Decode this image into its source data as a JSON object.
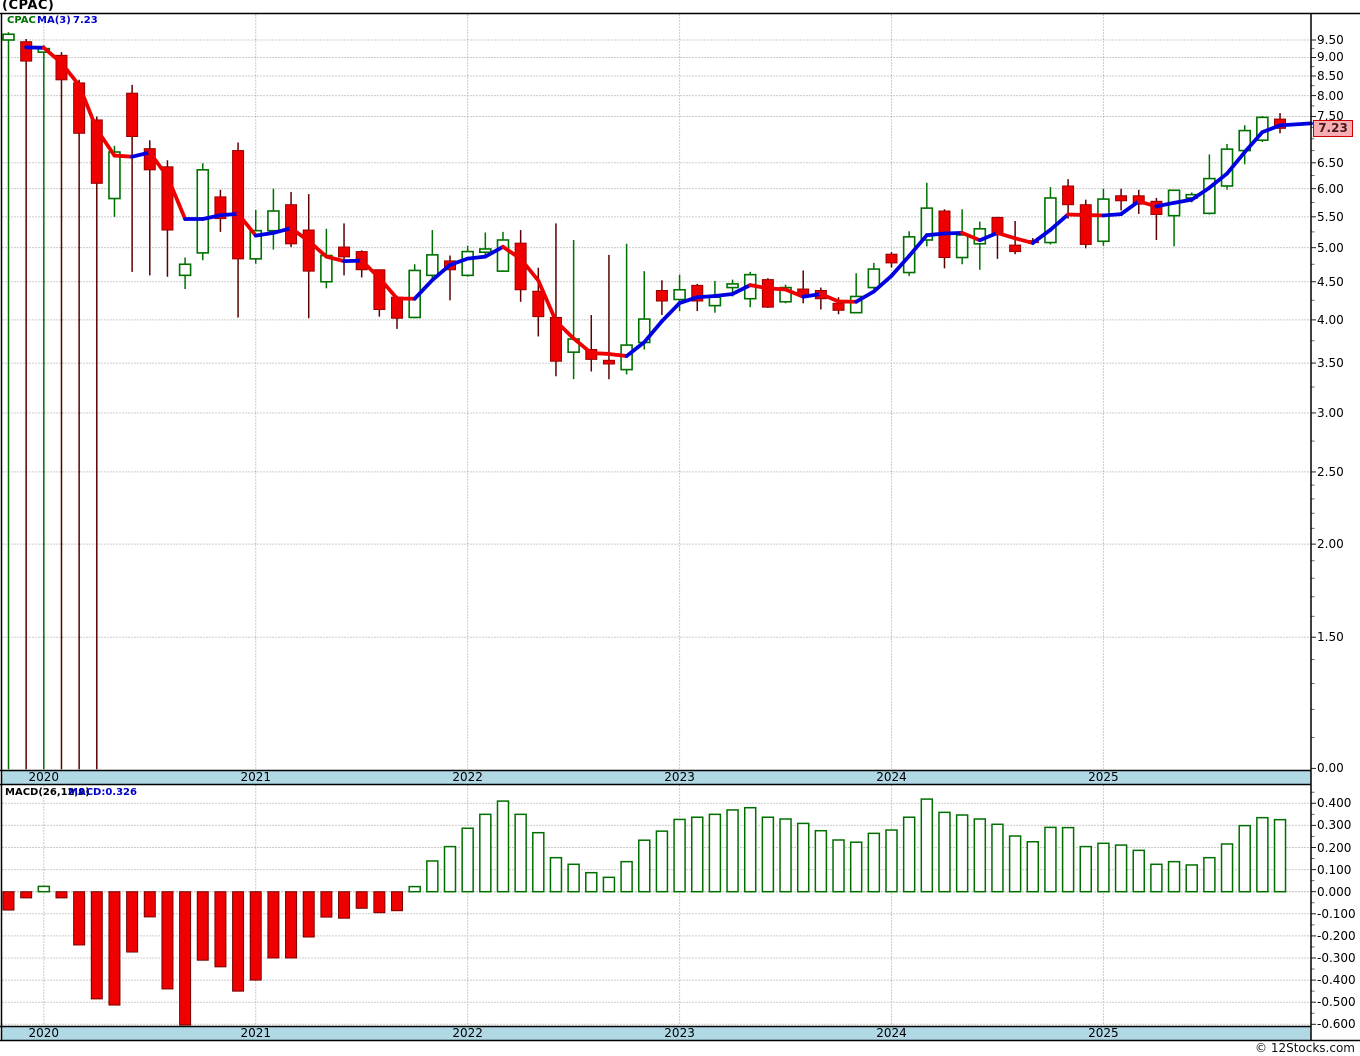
{
  "window": {
    "title": "(CPAC)"
  },
  "main_chart": {
    "legend": {
      "symbol": "CPAC",
      "ma_label": "MA(3)",
      "ma_value": "7.23"
    },
    "current_price_label": "7.23",
    "price_axis_labels": [
      "9.50",
      "9.00",
      "8.50",
      "8.00",
      "7.50",
      "6.50",
      "6.00",
      "5.50",
      "5.00",
      "4.50",
      "4.00",
      "3.50",
      "3.00",
      "2.50",
      "2.00",
      "1.50",
      "0.00"
    ]
  },
  "macd_chart": {
    "legend": {
      "label": "MACD(26,12,9)",
      "value": "MACD:0.326"
    },
    "axis_labels": [
      "0.400",
      "0.300",
      "0.200",
      "0.100",
      "0.000",
      "-0.100",
      "-0.200",
      "-0.300",
      "-0.400",
      "-0.500",
      "-0.600"
    ]
  },
  "x_axis": {
    "years": [
      "2020",
      "2021",
      "2022",
      "2023",
      "2024",
      "2025"
    ]
  },
  "footer": {
    "copyright": "© 12Stocks.com"
  },
  "colors": {
    "up": "#007000",
    "up_fill": "#FFFFFF",
    "down_fill": "#EE0000",
    "down_border": "#990000",
    "down_wick": "#5C0000",
    "ma_up": "#0000E0",
    "ma_down": "#EE0000",
    "grid": "#999999",
    "band_bg": "#B0D8E5",
    "border": "#000000",
    "legend_symbol": "#007000",
    "legend_blue": "#0000CC",
    "macd_label_black": "#000000",
    "current_price_bg": "#F6AEB4",
    "current_price_border": "#CC0000",
    "current_price_text": "#4A1A1A",
    "macd_pos_border": "#006F00",
    "macd_neg_fill": "#EE0000",
    "macd_neg_border": "#7A0000"
  },
  "chart_data": {
    "type": "candlestick_with_macd_histogram",
    "symbol": "CPAC",
    "interval": "monthly",
    "start": "2019-11",
    "price_scale": "log",
    "ma_period": 3,
    "macd_params": [
      26,
      12,
      9
    ],
    "macd_last": 0.326,
    "last_close": 7.23,
    "price_axis": {
      "labeled_values": [
        9.5,
        9.0,
        8.5,
        8.0,
        7.5,
        6.5,
        6.0,
        5.5,
        5.0,
        4.5,
        4.0,
        3.5,
        3.0,
        2.5,
        2.0,
        1.5
      ],
      "bottom_label": "0.00",
      "current": 7.23
    },
    "macd_axis": {
      "labeled_values": [
        0.4,
        0.3,
        0.2,
        0.1,
        0.0,
        -0.1,
        -0.2,
        -0.3,
        -0.4,
        -0.5,
        -0.6
      ]
    },
    "year_start_indices": {
      "2020": 2,
      "2021": 14,
      "2022": 26,
      "2023": 38,
      "2024": 50,
      "2025": 62
    },
    "candles_ohlc": [
      [
        9.5,
        9.73,
        0,
        9.67
      ],
      [
        9.45,
        9.53,
        0,
        8.9
      ],
      [
        9.15,
        9.35,
        0,
        9.25
      ],
      [
        9.06,
        9.15,
        0,
        8.4
      ],
      [
        8.32,
        8.4,
        0,
        7.12
      ],
      [
        7.42,
        7.5,
        0,
        6.1
      ],
      [
        5.82,
        6.85,
        5.5,
        6.72
      ],
      [
        8.06,
        8.27,
        4.64,
        7.05
      ],
      [
        6.79,
        6.97,
        4.59,
        6.36
      ],
      [
        6.42,
        6.55,
        4.57,
        5.28
      ],
      [
        4.59,
        4.85,
        4.4,
        4.75
      ],
      [
        4.92,
        6.49,
        4.81,
        6.36
      ],
      [
        5.85,
        5.98,
        5.25,
        5.47
      ],
      [
        6.75,
        6.92,
        4.03,
        4.83
      ],
      [
        4.83,
        5.62,
        4.76,
        5.27
      ],
      [
        5.27,
        6.0,
        4.97,
        5.6
      ],
      [
        5.71,
        5.94,
        5.01,
        5.06
      ],
      [
        5.28,
        5.9,
        4.02,
        4.65
      ],
      [
        4.5,
        5.3,
        4.41,
        4.88
      ],
      [
        5.01,
        5.39,
        4.59,
        4.86
      ],
      [
        4.94,
        4.96,
        4.56,
        4.67
      ],
      [
        4.67,
        4.67,
        4.04,
        4.13
      ],
      [
        4.29,
        4.31,
        3.89,
        4.02
      ],
      [
        4.03,
        4.75,
        4.02,
        4.66
      ],
      [
        4.59,
        5.28,
        4.51,
        4.89
      ],
      [
        4.8,
        4.88,
        4.25,
        4.67
      ],
      [
        4.59,
        5.03,
        4.57,
        4.94
      ],
      [
        4.93,
        5.24,
        4.85,
        4.98
      ],
      [
        4.65,
        5.25,
        4.64,
        5.12
      ],
      [
        5.07,
        5.28,
        4.23,
        4.39
      ],
      [
        4.37,
        4.7,
        3.8,
        4.04
      ],
      [
        4.03,
        5.39,
        3.36,
        3.52
      ],
      [
        3.62,
        5.12,
        3.33,
        3.77
      ],
      [
        3.65,
        4.06,
        3.41,
        3.54
      ],
      [
        3.53,
        4.89,
        3.33,
        3.49
      ],
      [
        3.43,
        5.06,
        3.38,
        3.7
      ],
      [
        3.73,
        4.65,
        3.65,
        4.01
      ],
      [
        4.38,
        4.52,
        4.06,
        4.24
      ],
      [
        4.26,
        4.6,
        4.11,
        4.39
      ],
      [
        4.45,
        4.47,
        4.11,
        4.24
      ],
      [
        4.18,
        4.51,
        4.09,
        4.29
      ],
      [
        4.42,
        4.53,
        4.3,
        4.47
      ],
      [
        4.27,
        4.64,
        4.16,
        4.6
      ],
      [
        4.53,
        4.55,
        4.15,
        4.16
      ],
      [
        4.23,
        4.46,
        4.21,
        4.42
      ],
      [
        4.4,
        4.66,
        4.21,
        4.31
      ],
      [
        4.38,
        4.42,
        4.13,
        4.27
      ],
      [
        4.21,
        4.29,
        4.07,
        4.12
      ],
      [
        4.09,
        4.62,
        4.08,
        4.3
      ],
      [
        4.42,
        4.77,
        4.4,
        4.68
      ],
      [
        4.9,
        4.93,
        4.7,
        4.77
      ],
      [
        4.63,
        5.26,
        4.58,
        5.17
      ],
      [
        5.12,
        6.11,
        5.02,
        5.65
      ],
      [
        5.6,
        5.63,
        4.69,
        4.85
      ],
      [
        4.85,
        5.63,
        4.75,
        5.2
      ],
      [
        5.06,
        5.42,
        4.67,
        5.3
      ],
      [
        5.49,
        5.5,
        4.83,
        5.2
      ],
      [
        5.04,
        5.43,
        4.9,
        4.94
      ],
      [
        5.11,
        5.15,
        5.04,
        5.08
      ],
      [
        5.08,
        6.03,
        5.05,
        5.83
      ],
      [
        6.05,
        6.18,
        5.47,
        5.71
      ],
      [
        5.71,
        5.8,
        4.99,
        5.05
      ],
      [
        5.1,
        6.0,
        5.03,
        5.81
      ],
      [
        5.87,
        6.0,
        5.61,
        5.78
      ],
      [
        5.87,
        5.98,
        5.55,
        5.72
      ],
      [
        5.77,
        5.83,
        5.12,
        5.54
      ],
      [
        5.52,
        5.98,
        5.02,
        5.97
      ],
      [
        5.83,
        5.93,
        5.75,
        5.89
      ],
      [
        5.56,
        6.67,
        5.54,
        6.19
      ],
      [
        6.05,
        6.89,
        5.98,
        6.78
      ],
      [
        6.75,
        7.3,
        6.47,
        7.18
      ],
      [
        6.97,
        7.51,
        6.93,
        7.48
      ],
      [
        7.44,
        7.58,
        7.12,
        7.23
      ]
    ],
    "macd_histogram": [
      -0.083,
      -0.028,
      0.024,
      -0.028,
      -0.241,
      -0.485,
      -0.513,
      -0.273,
      -0.114,
      -0.44,
      -0.603,
      -0.31,
      -0.34,
      -0.45,
      -0.4,
      -0.3,
      -0.3,
      -0.205,
      -0.115,
      -0.12,
      -0.075,
      -0.095,
      -0.086,
      0.023,
      0.139,
      0.204,
      0.287,
      0.35,
      0.41,
      0.35,
      0.267,
      0.154,
      0.124,
      0.086,
      0.065,
      0.136,
      0.233,
      0.274,
      0.327,
      0.337,
      0.35,
      0.37,
      0.38,
      0.337,
      0.329,
      0.309,
      0.276,
      0.234,
      0.224,
      0.264,
      0.279,
      0.337,
      0.419,
      0.359,
      0.347,
      0.329,
      0.305,
      0.252,
      0.226,
      0.291,
      0.29,
      0.204,
      0.219,
      0.211,
      0.187,
      0.124,
      0.136,
      0.121,
      0.154,
      0.216,
      0.299,
      0.335,
      0.326
    ]
  }
}
